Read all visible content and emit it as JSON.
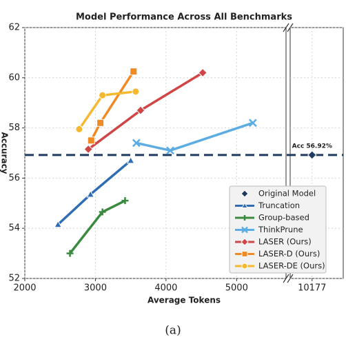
{
  "chart_data": {
    "type": "line",
    "title": "Model Performance Across All Benchmarks",
    "xlabel": "Average Tokens",
    "ylabel": "Accuracy",
    "caption": "(a)",
    "xlim": [
      2000,
      5700
    ],
    "x2lim": [
      9950,
      10500
    ],
    "xticks": [
      2000,
      3000,
      4000,
      5000
    ],
    "x2ticks": [
      10177
    ],
    "ylim": [
      52,
      62
    ],
    "yticks": [
      52,
      54,
      56,
      58,
      60,
      62
    ],
    "grid": true,
    "reference": {
      "name": "Original Model",
      "color": "#1f3a5f",
      "x": 10177,
      "value": 56.92,
      "value_label": "Acc 56.92%"
    },
    "series": [
      {
        "name": "Truncation",
        "color": "#2e6db4",
        "marker": "triangle",
        "x": [
          2470,
          2930,
          3500
        ],
        "values": [
          54.15,
          55.35,
          56.7
        ]
      },
      {
        "name": "Group-based",
        "color": "#3a8a3f",
        "marker": "plus",
        "x": [
          2640,
          3100,
          3420
        ],
        "values": [
          53.0,
          54.65,
          55.1
        ]
      },
      {
        "name": "ThinkPrune",
        "color": "#5dade2",
        "marker": "x",
        "x": [
          3580,
          4060,
          5230
        ],
        "values": [
          57.4,
          57.1,
          58.2
        ]
      },
      {
        "name": "LASER (Ours)",
        "color": "#d04545",
        "marker": "diamond",
        "x": [
          2900,
          3640,
          4520
        ],
        "values": [
          57.15,
          58.7,
          60.2
        ]
      },
      {
        "name": "LASER-D (Ours)",
        "color": "#f08a24",
        "marker": "square",
        "x": [
          2940,
          3070,
          3540
        ],
        "values": [
          57.5,
          58.2,
          60.25
        ]
      },
      {
        "name": "LASER-DE (Ours)",
        "color": "#f5b82e",
        "marker": "circle",
        "x": [
          2770,
          3100,
          3570
        ],
        "values": [
          57.95,
          59.3,
          59.45
        ]
      }
    ],
    "legend": "lower right"
  }
}
